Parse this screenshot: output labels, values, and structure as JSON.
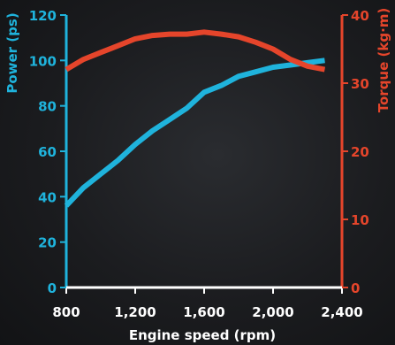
{
  "chart_data": {
    "type": "line",
    "title": "",
    "xlabel": "Engine speed (rpm)",
    "ylabel_left": "Power (ps)",
    "ylabel_right": "Torque (kg·m)",
    "xlim": [
      800,
      2400
    ],
    "ylim_left": [
      0,
      120
    ],
    "ylim_right": [
      0,
      40
    ],
    "x_ticks": [
      "800",
      "1,200",
      "1,600",
      "2,000",
      "2,400"
    ],
    "y_ticks_left": [
      "0",
      "20",
      "40",
      "60",
      "80",
      "100",
      "120"
    ],
    "y_ticks_right": [
      "0",
      "10",
      "20",
      "30",
      "40"
    ],
    "grid": false,
    "series": [
      {
        "axis": "left",
        "color": "#1fb3dc",
        "x": [
          800,
          900,
          1000,
          1100,
          1200,
          1300,
          1400,
          1500,
          1600,
          1700,
          1800,
          1900,
          2000,
          2100,
          2200,
          2300
        ],
        "values": [
          36,
          44,
          50,
          56,
          63,
          69,
          74,
          79,
          86,
          89,
          93,
          95,
          97,
          98,
          99,
          100
        ]
      },
      {
        "axis": "right",
        "color": "#e5452b",
        "x": [
          800,
          900,
          1000,
          1100,
          1200,
          1300,
          1400,
          1500,
          1600,
          1700,
          1800,
          1900,
          2000,
          2100,
          2200,
          2300
        ],
        "values": [
          32,
          33.5,
          34.5,
          35.5,
          36.5,
          37,
          37.2,
          37.2,
          37.5,
          37.2,
          36.8,
          36,
          35,
          33.5,
          32.5,
          32
        ]
      }
    ]
  },
  "colors": {
    "power": "#1fb3dc",
    "torque": "#e5452b",
    "axis_text": "#ffffff"
  }
}
